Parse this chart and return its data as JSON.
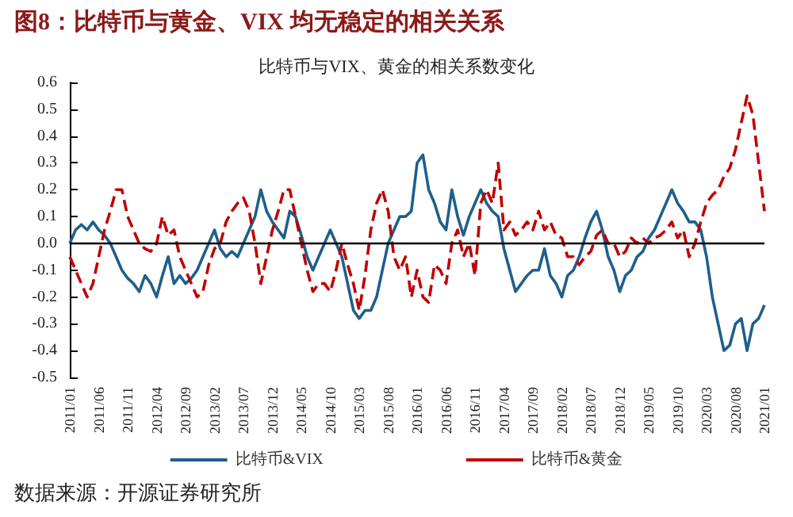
{
  "chart_data": {
    "type": "line",
    "title": "图8：比特币与黄金、VIX 均无稳定的相关关系",
    "subtitle": "比特币与VIX、黄金的相关系数变化",
    "annotations": [
      "数据来源：开源证券研究所"
    ],
    "categories": [
      "2011/01",
      null,
      null,
      null,
      null,
      "2011/06",
      null,
      null,
      null,
      null,
      "2011/11",
      null,
      null,
      null,
      null,
      "2012/04",
      null,
      null,
      null,
      null,
      "2012/09",
      null,
      null,
      null,
      null,
      "2013/02",
      null,
      null,
      null,
      null,
      "2013/07",
      null,
      null,
      null,
      null,
      "2013/12",
      null,
      null,
      null,
      null,
      "2014/05",
      null,
      null,
      null,
      null,
      "2014/10",
      null,
      null,
      null,
      null,
      "2015/03",
      null,
      null,
      null,
      null,
      "2015/08",
      null,
      null,
      null,
      null,
      "2016/01",
      null,
      null,
      null,
      null,
      "2016/06",
      null,
      null,
      null,
      null,
      "2016/11",
      null,
      null,
      null,
      null,
      "2017/04",
      null,
      null,
      null,
      null,
      "2017/09",
      null,
      null,
      null,
      null,
      "2018/02",
      null,
      null,
      null,
      null,
      "2018/07",
      null,
      null,
      null,
      null,
      "2018/12",
      null,
      null,
      null,
      null,
      "2019/05",
      null,
      null,
      null,
      null,
      "2019/10",
      null,
      null,
      null,
      null,
      "2020/03",
      null,
      null,
      null,
      null,
      "2020/08",
      null,
      null,
      null,
      null,
      "2021/01"
    ],
    "series": [
      {
        "name": "比特币&VIX",
        "color": "#1f5f8b",
        "line_style": "solid",
        "values": [
          0.0,
          0.05,
          0.07,
          0.05,
          0.08,
          0.05,
          0.03,
          0.0,
          -0.05,
          -0.1,
          -0.13,
          -0.15,
          -0.18,
          -0.12,
          -0.15,
          -0.2,
          -0.12,
          -0.05,
          -0.15,
          -0.12,
          -0.15,
          -0.13,
          -0.1,
          -0.05,
          0.0,
          0.05,
          -0.02,
          -0.05,
          -0.03,
          -0.05,
          0.0,
          0.05,
          0.1,
          0.2,
          0.12,
          0.08,
          0.05,
          0.02,
          0.12,
          0.1,
          0.03,
          -0.05,
          -0.1,
          -0.05,
          0.0,
          0.05,
          0.0,
          -0.05,
          -0.15,
          -0.25,
          -0.28,
          -0.25,
          -0.25,
          -0.2,
          -0.1,
          0.0,
          0.05,
          0.1,
          0.1,
          0.12,
          0.3,
          0.33,
          0.2,
          0.15,
          0.08,
          0.05,
          0.2,
          0.1,
          0.03,
          0.1,
          0.15,
          0.2,
          0.15,
          0.12,
          0.1,
          -0.02,
          -0.1,
          -0.18,
          -0.15,
          -0.12,
          -0.1,
          -0.1,
          -0.02,
          -0.12,
          -0.15,
          -0.2,
          -0.12,
          -0.1,
          -0.05,
          0.02,
          0.08,
          0.12,
          0.05,
          -0.05,
          -0.1,
          -0.18,
          -0.12,
          -0.1,
          -0.05,
          -0.03,
          0.02,
          0.05,
          0.1,
          0.15,
          0.2,
          0.15,
          0.12,
          0.08,
          0.08,
          0.05,
          -0.05,
          -0.2,
          -0.3,
          -0.4,
          -0.38,
          -0.3,
          -0.28,
          -0.4,
          -0.3,
          -0.28,
          -0.23
        ]
      },
      {
        "name": "比特币&黄金",
        "color": "#c00000",
        "line_style": "dashed",
        "values": [
          -0.05,
          -0.1,
          -0.15,
          -0.2,
          -0.15,
          -0.05,
          0.05,
          0.12,
          0.2,
          0.2,
          0.1,
          0.05,
          0.0,
          -0.02,
          -0.03,
          0.0,
          0.1,
          0.03,
          0.05,
          -0.05,
          -0.1,
          -0.15,
          -0.2,
          -0.18,
          -0.08,
          -0.02,
          0.0,
          0.08,
          0.12,
          0.15,
          0.17,
          0.12,
          0.0,
          -0.15,
          -0.05,
          0.05,
          0.12,
          0.2,
          0.2,
          0.1,
          0.0,
          -0.1,
          -0.18,
          -0.15,
          -0.15,
          -0.18,
          -0.1,
          0.0,
          -0.08,
          -0.15,
          -0.25,
          -0.12,
          0.05,
          0.15,
          0.2,
          0.12,
          -0.05,
          -0.1,
          -0.05,
          -0.2,
          -0.1,
          -0.2,
          -0.22,
          -0.08,
          -0.1,
          -0.15,
          0.0,
          0.05,
          -0.05,
          0.0,
          -0.12,
          0.15,
          0.2,
          0.15,
          0.3,
          0.05,
          0.08,
          0.03,
          0.05,
          0.08,
          0.05,
          0.12,
          0.05,
          0.08,
          0.03,
          0.02,
          -0.05,
          -0.05,
          -0.08,
          -0.05,
          -0.03,
          0.03,
          0.05,
          0.0,
          0.0,
          -0.05,
          -0.03,
          0.02,
          0.0,
          0.02,
          0.0,
          0.02,
          0.03,
          0.05,
          0.08,
          0.02,
          0.05,
          -0.05,
          0.0,
          0.08,
          0.15,
          0.18,
          0.2,
          0.25,
          0.28,
          0.35,
          0.45,
          0.55,
          0.48,
          0.3,
          0.12
        ]
      }
    ],
    "ylim": [
      -0.5,
      0.6
    ],
    "yticks": [
      -0.5,
      -0.4,
      -0.3,
      -0.2,
      -0.1,
      {
        "value": 0,
        "label": "0.0"
      },
      0.1,
      0.2,
      0.3,
      0.4,
      0.5,
      0.6
    ],
    "ref_lines": [
      {
        "axis": "y",
        "value": 0,
        "color": "#000000",
        "line_style": "solid"
      }
    ],
    "grid": false,
    "legend": "bottom",
    "marker": "none"
  }
}
